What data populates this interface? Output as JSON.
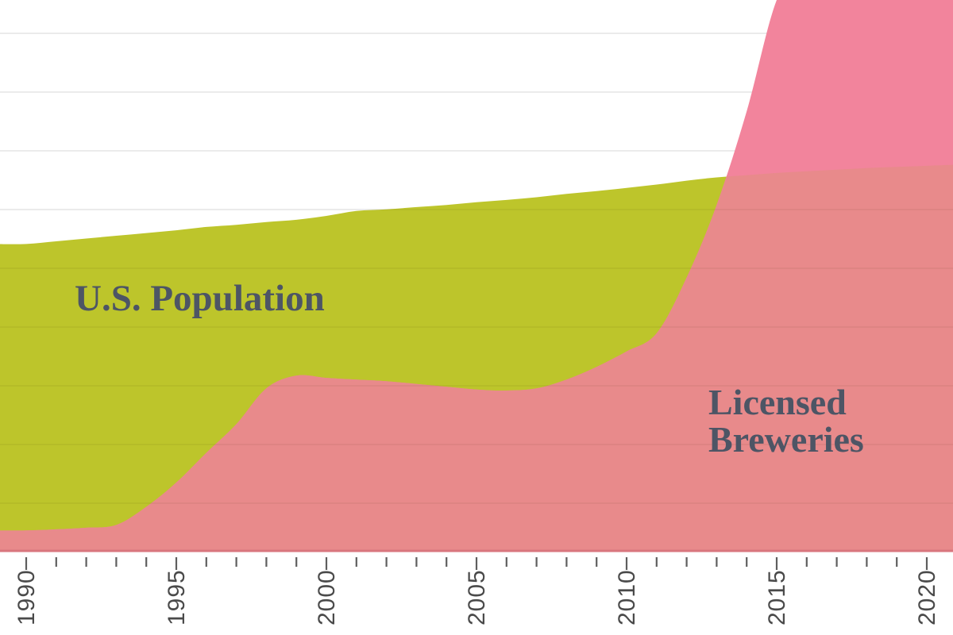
{
  "chart": {
    "area_labels": {
      "population": "U.S. Population",
      "breweries_line1": "Licensed",
      "breweries_line2": "Breweries"
    },
    "x_axis": {
      "labeled_ticks": [
        "1990",
        "1995",
        "2000",
        "2005",
        "2010",
        "2015",
        "2020"
      ],
      "minor_tick_every_years": 1
    },
    "colors": {
      "background": "#FFFFFF",
      "population_area": "#BDC52B",
      "breweries_over_white": "#F2849C",
      "breweries_over_population": "#E88A8B",
      "label_text": "#4D5565",
      "axis_line": "#D9767E",
      "tick": "#5E5E5E",
      "tick_label": "#4A4A4A",
      "gridline": "#EBEBEB"
    }
  },
  "chart_data": {
    "type": "area",
    "title": "",
    "xlabel": "",
    "ylabel": "",
    "x_range": [
      1990,
      2021
    ],
    "x": [
      1990,
      1991,
      1992,
      1993,
      1994,
      1995,
      1996,
      1997,
      1998,
      1999,
      2000,
      2001,
      2002,
      2003,
      2004,
      2005,
      2006,
      2007,
      2008,
      2009,
      2010,
      2011,
      2012,
      2013,
      2014,
      2015,
      2016,
      2017,
      2018,
      2019,
      2020,
      2021
    ],
    "values_unit": "percent of plot height (chart shows no y-axis labels; two series use independent scales)",
    "series": [
      {
        "name": "U.S. Population",
        "values_pct_of_plot_height": [
          55.7,
          56.2,
          56.7,
          57.2,
          57.7,
          58.2,
          58.8,
          59.2,
          59.7,
          60.1,
          60.8,
          61.7,
          62.0,
          62.4,
          62.8,
          63.3,
          63.7,
          64.2,
          64.8,
          65.3,
          65.9,
          66.5,
          67.2,
          67.8,
          68.2,
          68.6,
          68.9,
          69.2,
          69.5,
          69.7,
          69.9,
          70.1
        ]
      },
      {
        "name": "Licensed Breweries",
        "values_pct_of_plot_height": [
          3.7,
          3.9,
          4.2,
          4.7,
          8.0,
          12.4,
          17.8,
          23.0,
          29.5,
          31.8,
          31.4,
          31.1,
          30.8,
          30.3,
          29.8,
          29.3,
          29.1,
          29.5,
          31.1,
          33.4,
          36.2,
          39.5,
          49.6,
          62.8,
          79.8,
          100.0,
          108,
          113,
          116,
          118,
          119,
          120
        ],
        "exits_top_of_frame_at": 2015,
        "values_extrapolated_off_frame_from": 2016
      }
    ],
    "y_axis": {
      "visible_labels": false,
      "gridline_count": 9
    },
    "legend_position": "labels drawn inside the areas",
    "grid": true
  }
}
